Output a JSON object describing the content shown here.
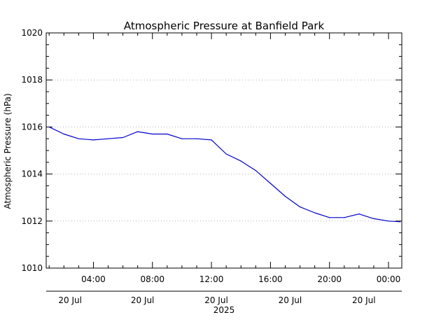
{
  "chart_data": {
    "type": "line",
    "title": "Atmospheric Pressure at Banfield Park",
    "xlabel": "",
    "ylabel": "Atmospheric Pressure (hPa)",
    "x_unit": "hours (local time, 20 Jul 2025)",
    "xlim": [
      0.8,
      24.9
    ],
    "ylim": [
      1010,
      1020
    ],
    "grid": true,
    "y_ticks": [
      1010,
      1012,
      1014,
      1016,
      1018,
      1020
    ],
    "y_tick_labels": [
      "1010",
      "1012",
      "1014",
      "1016",
      "1018",
      "1020"
    ],
    "x_ticks": [
      4,
      8,
      12,
      16,
      20,
      24
    ],
    "x_tick_labels": [
      "04:00",
      "08:00",
      "12:00",
      "16:00",
      "20:00",
      "00:00"
    ],
    "x_date_labels": [
      "20 Jul",
      "20 Jul",
      "20 Jul",
      "20 Jul",
      "20 Jul"
    ],
    "year_label": "2025",
    "line_color": "#0000cc",
    "series": [
      {
        "x": [
          1,
          2,
          3,
          4,
          5,
          6,
          7,
          8,
          9,
          10,
          11,
          12,
          13,
          14,
          15,
          16,
          17,
          18,
          19,
          20,
          21,
          22,
          23,
          24,
          24.8
        ],
        "y": [
          1016.0,
          1015.7,
          1015.5,
          1015.45,
          1015.5,
          1015.55,
          1015.8,
          1015.7,
          1015.7,
          1015.5,
          1015.5,
          1015.45,
          1014.85,
          1014.55,
          1014.15,
          1013.6,
          1013.05,
          1012.6,
          1012.35,
          1012.15,
          1012.15,
          1012.3,
          1012.1,
          1012.0,
          1011.97
        ]
      }
    ]
  }
}
